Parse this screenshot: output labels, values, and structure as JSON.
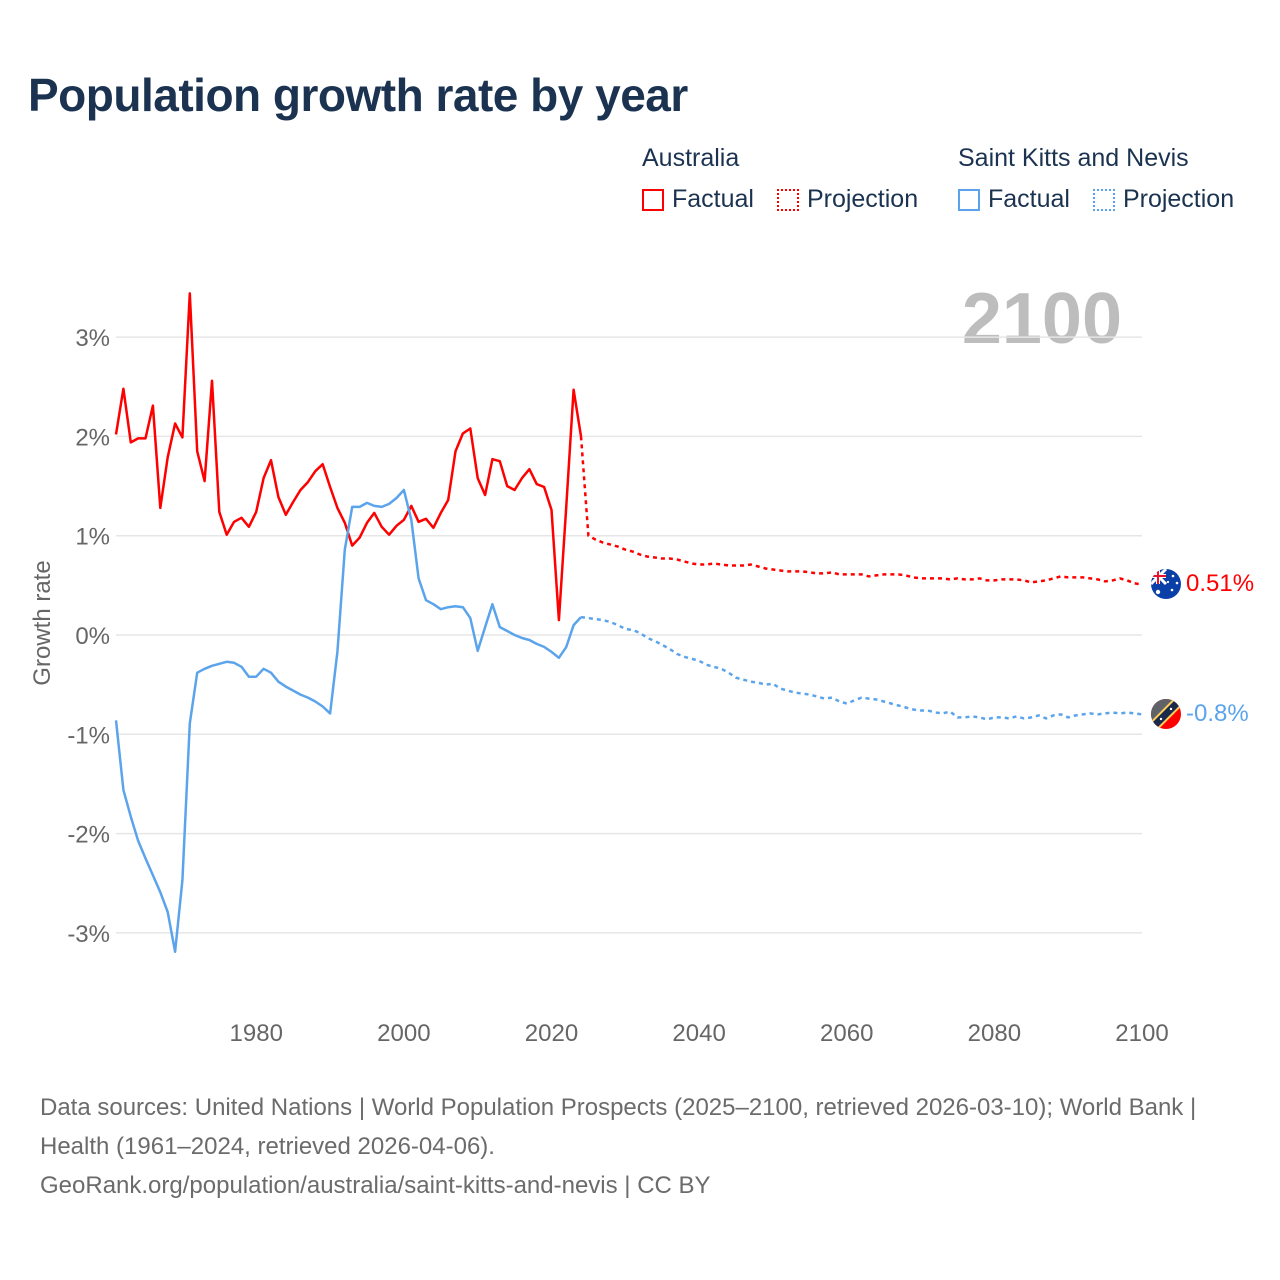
{
  "title": "Population growth rate by year",
  "current_year": "2100",
  "legend": {
    "groups": [
      {
        "name": "Australia",
        "color": "#ff0000",
        "factual": "Factual",
        "projection": "Projection"
      },
      {
        "name": "Saint Kitts and Nevis",
        "color": "#5ba4ec",
        "factual": "Factual",
        "projection": "Projection"
      }
    ]
  },
  "end_labels": {
    "australia": "0.51%",
    "skn": "-0.8%"
  },
  "source": {
    "line1": "Data sources: United Nations | World Population Prospects (2025–2100, retrieved 2026-03-10); World Bank | Health (1961–2024, retrieved 2026-04-06).",
    "line2": "GeoRank.org/population/australia/saint-kitts-and-nevis | CC BY"
  },
  "chart_data": {
    "type": "line",
    "title": "Population growth rate by year",
    "xlabel": "",
    "ylabel": "Growth rate",
    "xlim": [
      1961,
      2100
    ],
    "ylim": [
      -3.5,
      3.5
    ],
    "x_ticks": [
      1980,
      2000,
      2020,
      2040,
      2060,
      2080,
      2100
    ],
    "y_ticks": [
      {
        "v": 3,
        "label": "3%"
      },
      {
        "v": 2,
        "label": "2%"
      },
      {
        "v": 1,
        "label": "1%"
      },
      {
        "v": 0,
        "label": "0%"
      },
      {
        "v": -1,
        "label": "-1%"
      },
      {
        "v": -2,
        "label": "-2%"
      },
      {
        "v": -3,
        "label": "-3%"
      }
    ],
    "grid": true,
    "series": [
      {
        "name": "Australia",
        "color": "#ff0000",
        "factual_start": 1961,
        "factual": [
          2.02,
          2.48,
          1.94,
          1.98,
          1.98,
          2.31,
          1.28,
          1.79,
          2.13,
          1.99,
          3.44,
          1.85,
          1.55,
          2.56,
          1.24,
          1.01,
          1.14,
          1.18,
          1.09,
          1.24,
          1.58,
          1.76,
          1.39,
          1.21,
          1.34,
          1.46,
          1.54,
          1.65,
          1.72,
          1.49,
          1.28,
          1.13,
          0.9,
          0.98,
          1.13,
          1.23,
          1.09,
          1.01,
          1.1,
          1.16,
          1.3,
          1.14,
          1.17,
          1.08,
          1.23,
          1.36,
          1.85,
          2.03,
          2.08,
          1.58,
          1.41,
          1.77,
          1.75,
          1.5,
          1.46,
          1.58,
          1.67,
          1.52,
          1.49,
          1.26,
          0.15,
          1.3,
          2.47,
          2.0
        ],
        "projection_start": 2025,
        "projection": [
          1.0,
          0.96,
          0.93,
          0.91,
          0.89,
          0.86,
          0.84,
          0.81,
          0.79,
          0.78,
          0.77,
          0.77,
          0.76,
          0.74,
          0.72,
          0.71,
          0.71,
          0.72,
          0.71,
          0.7,
          0.7,
          0.7,
          0.71,
          0.69,
          0.67,
          0.66,
          0.65,
          0.64,
          0.64,
          0.64,
          0.63,
          0.62,
          0.62,
          0.63,
          0.61,
          0.61,
          0.61,
          0.61,
          0.59,
          0.6,
          0.61,
          0.61,
          0.61,
          0.6,
          0.58,
          0.57,
          0.57,
          0.57,
          0.57,
          0.56,
          0.57,
          0.56,
          0.56,
          0.57,
          0.55,
          0.55,
          0.56,
          0.56,
          0.56,
          0.55,
          0.53,
          0.54,
          0.55,
          0.57,
          0.59,
          0.58,
          0.58,
          0.58,
          0.57,
          0.56,
          0.54,
          0.55,
          0.57,
          0.55,
          0.52,
          0.51
        ]
      },
      {
        "name": "Saint Kitts and Nevis",
        "color": "#5ba4ec",
        "factual_start": 1961,
        "factual": [
          -0.86,
          -1.56,
          -1.83,
          -2.07,
          -2.25,
          -2.42,
          -2.59,
          -2.79,
          -3.19,
          -2.47,
          -0.89,
          -0.38,
          -0.34,
          -0.31,
          -0.29,
          -0.27,
          -0.28,
          -0.32,
          -0.42,
          -0.42,
          -0.34,
          -0.38,
          -0.47,
          -0.52,
          -0.56,
          -0.6,
          -0.63,
          -0.67,
          -0.72,
          -0.79,
          -0.17,
          0.86,
          1.29,
          1.29,
          1.33,
          1.3,
          1.29,
          1.32,
          1.38,
          1.46,
          1.16,
          0.57,
          0.35,
          0.31,
          0.26,
          0.28,
          0.29,
          0.28,
          0.17,
          -0.16,
          0.08,
          0.31,
          0.08,
          0.04,
          0.0,
          -0.03,
          -0.05,
          -0.09,
          -0.12,
          -0.17,
          -0.23,
          -0.12,
          0.1,
          0.18
        ],
        "projection_start": 2025,
        "projection": [
          0.17,
          0.16,
          0.15,
          0.13,
          0.1,
          0.06,
          0.05,
          0.02,
          -0.03,
          -0.06,
          -0.1,
          -0.14,
          -0.19,
          -0.22,
          -0.24,
          -0.26,
          -0.3,
          -0.32,
          -0.34,
          -0.38,
          -0.43,
          -0.45,
          -0.47,
          -0.48,
          -0.5,
          -0.49,
          -0.54,
          -0.56,
          -0.58,
          -0.59,
          -0.6,
          -0.62,
          -0.64,
          -0.63,
          -0.67,
          -0.69,
          -0.66,
          -0.63,
          -0.64,
          -0.65,
          -0.67,
          -0.69,
          -0.71,
          -0.73,
          -0.75,
          -0.76,
          -0.76,
          -0.78,
          -0.79,
          -0.77,
          -0.83,
          -0.83,
          -0.82,
          -0.83,
          -0.85,
          -0.83,
          -0.83,
          -0.84,
          -0.82,
          -0.84,
          -0.83,
          -0.81,
          -0.84,
          -0.81,
          -0.8,
          -0.83,
          -0.81,
          -0.8,
          -0.79,
          -0.8,
          -0.79,
          -0.78,
          -0.79,
          -0.78,
          -0.79,
          -0.8
        ]
      }
    ]
  }
}
